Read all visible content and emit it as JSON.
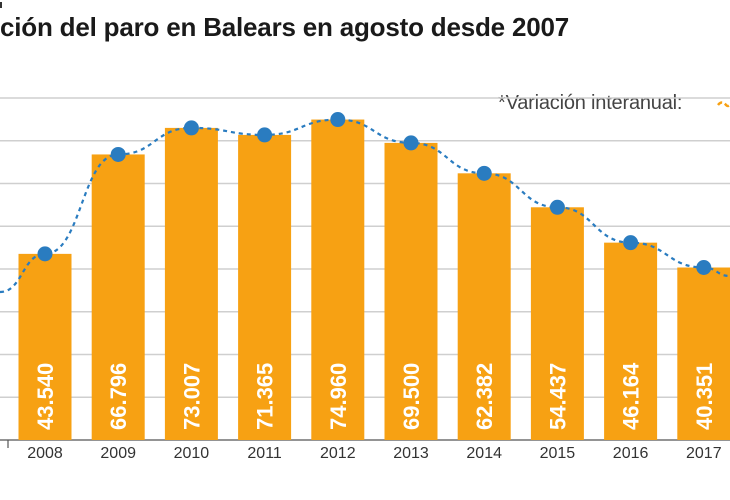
{
  "chart_data": {
    "type": "bar",
    "title": "ción del paro en Balears en agosto desde 2007",
    "legend_label": "*Variación interanual:",
    "legend_position": "top-right",
    "xlabel": "",
    "ylabel": "",
    "ylim": [
      0,
      80000
    ],
    "grid": true,
    "categories": [
      "2008",
      "2009",
      "2010",
      "2011",
      "2012",
      "2013",
      "2014",
      "2015",
      "2016",
      "2017"
    ],
    "values": [
      43540,
      66796,
      73007,
      71365,
      74960,
      69500,
      62382,
      54437,
      46164,
      40351
    ],
    "value_labels": [
      "43.540",
      "66.796",
      "73.007",
      "71.365",
      "74.960",
      "69.500",
      "62.382",
      "54.437",
      "46.164",
      "40.351"
    ],
    "line_series": {
      "name": "Variación interanual",
      "line_style": "dashed"
    },
    "colors": {
      "bar": "#f7a113",
      "line": "#2a7cc0",
      "grid": "#cfcfcf",
      "label": "#ffffff",
      "axis_text": "#333333"
    }
  }
}
